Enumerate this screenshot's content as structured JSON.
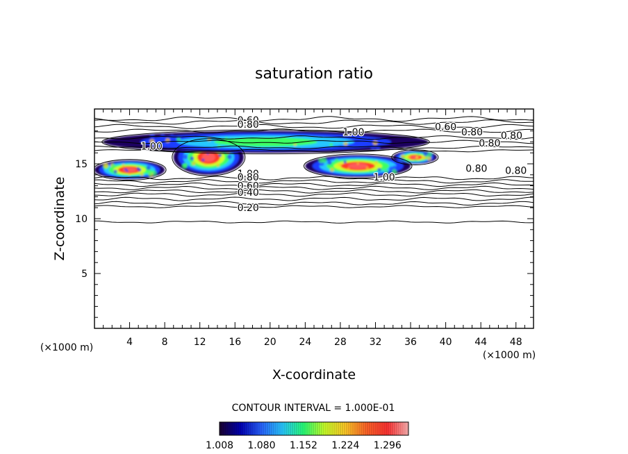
{
  "chart_data": {
    "type": "heatmap",
    "title": "saturation ratio",
    "xlabel": "X-coordinate",
    "ylabel": "Z-coordinate",
    "x_unit": "(×1000 m)",
    "z_unit": "(×1000 m)",
    "xlim": [
      0,
      50
    ],
    "ylim": [
      0,
      20
    ],
    "x_ticks": [
      "4",
      "8",
      "12",
      "16",
      "20",
      "24",
      "28",
      "32",
      "36",
      "40",
      "44",
      "48"
    ],
    "y_ticks": [
      "5",
      "10",
      "15"
    ],
    "x_tick_values": [
      4,
      8,
      12,
      16,
      20,
      24,
      28,
      32,
      36,
      40,
      44,
      48
    ],
    "y_tick_values": [
      5,
      10,
      15
    ],
    "contour_interval_text": "CONTOUR INTERVAL = 1.000E-01",
    "colorbar": {
      "range": [
        1.008,
        1.332
      ],
      "tick_labels": [
        "1.008",
        "1.080",
        "1.152",
        "1.224",
        "1.296"
      ],
      "tick_values": [
        1.008,
        1.08,
        1.152,
        1.224,
        1.296
      ],
      "colors": [
        "#1a0030",
        "#0000b4",
        "#2864ff",
        "#28c8ff",
        "#28ff78",
        "#c8ff28",
        "#ffc828",
        "#ff6428",
        "#ff3232",
        "#ffb4b4"
      ]
    },
    "contour_labels": [
      {
        "text": "0.60",
        "x": 17.5,
        "z": 19.0
      },
      {
        "text": "0.80",
        "x": 17.5,
        "z": 18.6
      },
      {
        "text": "0.60",
        "x": 40.0,
        "z": 18.4
      },
      {
        "text": "0.80",
        "x": 43.0,
        "z": 17.9
      },
      {
        "text": "0.80",
        "x": 47.5,
        "z": 17.6
      },
      {
        "text": "0.80",
        "x": 45.0,
        "z": 16.9
      },
      {
        "text": "1.00",
        "x": 29.5,
        "z": 17.9
      },
      {
        "text": "1.00",
        "x": 6.5,
        "z": 16.6
      },
      {
        "text": "0.80",
        "x": 43.5,
        "z": 14.6
      },
      {
        "text": "0.80",
        "x": 48.0,
        "z": 14.4
      },
      {
        "text": "1.00",
        "x": 17.5,
        "z": 14.1
      },
      {
        "text": "0.80",
        "x": 17.5,
        "z": 13.8
      },
      {
        "text": "0.60",
        "x": 17.5,
        "z": 13.0
      },
      {
        "text": "0.40",
        "x": 17.5,
        "z": 12.4
      },
      {
        "text": "0.20",
        "x": 17.5,
        "z": 11.0
      },
      {
        "text": "1.00",
        "x": 33.0,
        "z": 13.8
      }
    ],
    "supersaturated_regions": [
      {
        "x_range": [
          0,
          8
        ],
        "z_range": [
          13.6,
          15.3
        ],
        "max_level": 1.33
      },
      {
        "x_range": [
          9,
          17
        ],
        "z_range": [
          14.0,
          17.2
        ],
        "max_level": 1.33
      },
      {
        "x_range": [
          24,
          36
        ],
        "z_range": [
          13.8,
          15.8
        ],
        "max_level": 1.33
      },
      {
        "x_range": [
          34,
          39
        ],
        "z_range": [
          15.0,
          16.2
        ],
        "max_level": 1.33
      },
      {
        "x_range": [
          1,
          38
        ],
        "z_range": [
          16.0,
          18.0
        ],
        "max_level": 1.1
      }
    ],
    "contour_levels_outside": [
      {
        "level": 0.2,
        "z": 11.1
      },
      {
        "level": 0.1,
        "z": 9.7
      }
    ],
    "grid": false,
    "legend": "bottom"
  }
}
